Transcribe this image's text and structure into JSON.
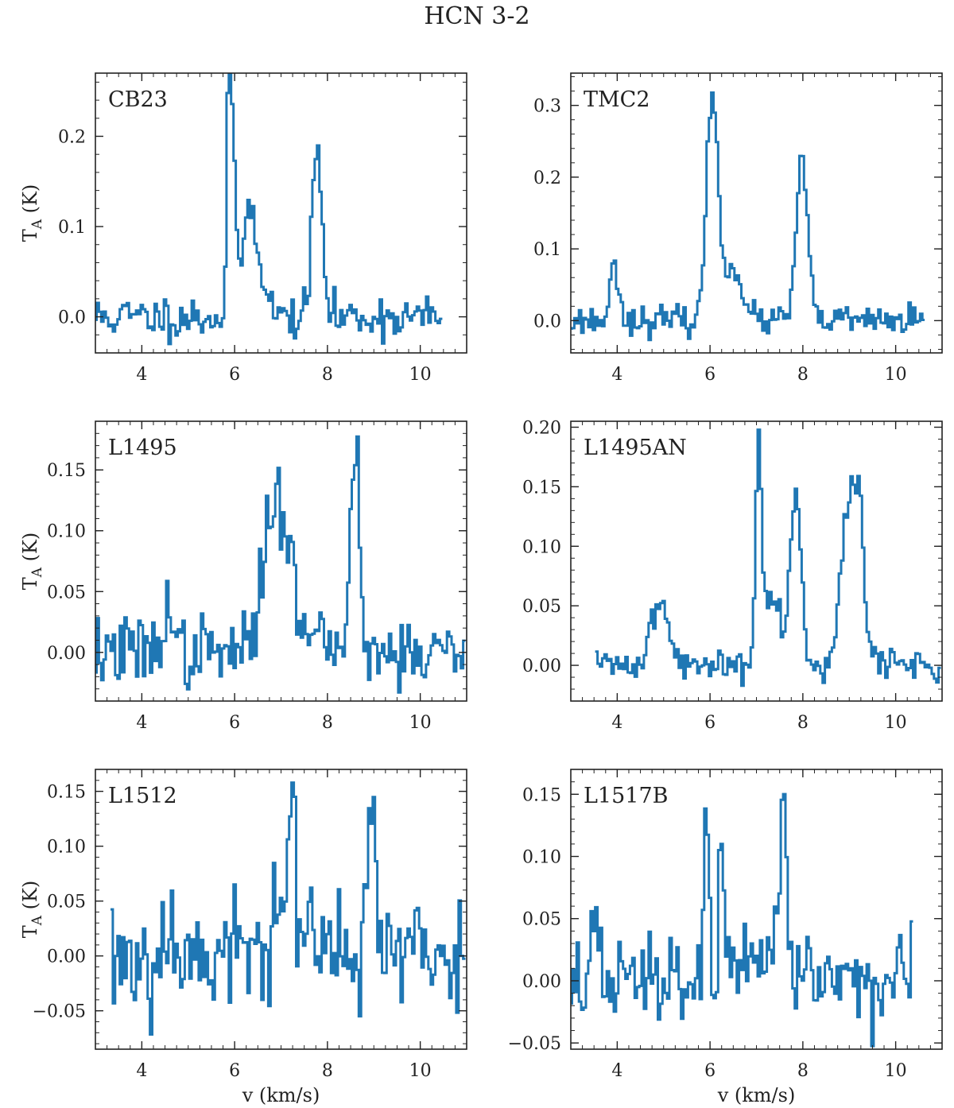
{
  "figure": {
    "title": "HCN 3-2",
    "ylabel_main": "T",
    "ylabel_sub": "A",
    "ylabel_unit": " (K)",
    "xlabel": "v (km/s)",
    "line_color": "#1f77b4"
  },
  "chart_data": [
    {
      "type": "line",
      "name": "CB23",
      "xlim": [
        3,
        11
      ],
      "ylim": [
        -0.04,
        0.27
      ],
      "xticks": [
        4,
        6,
        8,
        10
      ],
      "xtick_labels": [
        "4",
        "6",
        "8",
        "10"
      ],
      "yticks": [
        0.0,
        0.1,
        0.2
      ],
      "ytick_labels": [
        "0.0",
        "0.1",
        "0.2"
      ],
      "show_ylabel": true,
      "show_xlabel": false,
      "x_range": [
        3.0,
        10.45
      ],
      "peaks": [
        {
          "v": 5.88,
          "t": 0.27,
          "w": 0.04
        },
        {
          "v": 5.95,
          "t": 0.18,
          "w": 0.06
        },
        {
          "v": 6.3,
          "t": 0.11,
          "w": 0.15
        },
        {
          "v": 6.55,
          "t": 0.04,
          "w": 0.15
        },
        {
          "v": 7.8,
          "t": 0.155,
          "w": 0.1
        },
        {
          "v": 7.7,
          "t": 0.05,
          "w": 0.08
        }
      ],
      "noise": 0.012,
      "seed": 11
    },
    {
      "type": "line",
      "name": "TMC2",
      "xlim": [
        3,
        11
      ],
      "ylim": [
        -0.045,
        0.345
      ],
      "xticks": [
        4,
        6,
        8,
        10
      ],
      "xtick_labels": [
        "4",
        "6",
        "8",
        "10"
      ],
      "yticks": [
        0.0,
        0.1,
        0.2,
        0.3
      ],
      "ytick_labels": [
        "0.0",
        "0.1",
        "0.2",
        "0.3"
      ],
      "show_ylabel": false,
      "show_xlabel": false,
      "x_range": [
        3.0,
        10.6
      ],
      "peaks": [
        {
          "v": 3.95,
          "t": 0.075,
          "w": 0.1
        },
        {
          "v": 6.05,
          "t": 0.32,
          "w": 0.12
        },
        {
          "v": 6.5,
          "t": 0.08,
          "w": 0.18
        },
        {
          "v": 7.98,
          "t": 0.225,
          "w": 0.12
        }
      ],
      "noise": 0.01,
      "seed": 23
    },
    {
      "type": "line",
      "name": "L1495",
      "xlim": [
        3,
        11
      ],
      "ylim": [
        -0.04,
        0.19
      ],
      "xticks": [
        4,
        6,
        8,
        10
      ],
      "xtick_labels": [
        "4",
        "6",
        "8",
        "10"
      ],
      "yticks": [
        0.0,
        0.05,
        0.1,
        0.15
      ],
      "ytick_labels": [
        "0.00",
        "0.05",
        "0.10",
        "0.15"
      ],
      "show_ylabel": true,
      "show_xlabel": false,
      "x_range": [
        3.0,
        10.95
      ],
      "peaks": [
        {
          "v": 4.55,
          "t": 0.05,
          "w": 0.08
        },
        {
          "v": 6.9,
          "t": 0.13,
          "w": 0.25
        },
        {
          "v": 7.25,
          "t": 0.06,
          "w": 0.06
        },
        {
          "v": 7.85,
          "t": 0.04,
          "w": 0.08
        },
        {
          "v": 8.6,
          "t": 0.18,
          "w": 0.1
        }
      ],
      "noise": 0.015,
      "seed": 37
    },
    {
      "type": "line",
      "name": "L1495AN",
      "xlim": [
        3,
        11
      ],
      "ylim": [
        -0.03,
        0.205
      ],
      "xticks": [
        4,
        6,
        8,
        10
      ],
      "xtick_labels": [
        "4",
        "6",
        "8",
        "10"
      ],
      "yticks": [
        0.0,
        0.05,
        0.1,
        0.15,
        0.2
      ],
      "ytick_labels": [
        "0.00",
        "0.05",
        "0.10",
        "0.15",
        "0.20"
      ],
      "show_ylabel": false,
      "show_xlabel": false,
      "x_range": [
        3.55,
        10.95
      ],
      "peaks": [
        {
          "v": 4.9,
          "t": 0.055,
          "w": 0.18
        },
        {
          "v": 7.05,
          "t": 0.17,
          "w": 0.06
        },
        {
          "v": 7.3,
          "t": 0.06,
          "w": 0.2
        },
        {
          "v": 7.85,
          "t": 0.15,
          "w": 0.12
        },
        {
          "v": 9.05,
          "t": 0.15,
          "w": 0.2
        },
        {
          "v": 9.25,
          "t": 0.06,
          "w": 0.06
        }
      ],
      "noise": 0.007,
      "seed": 41
    },
    {
      "type": "line",
      "name": "L1512",
      "xlim": [
        3,
        11
      ],
      "ylim": [
        -0.085,
        0.17
      ],
      "xticks": [
        4,
        6,
        8,
        10
      ],
      "xtick_labels": [
        "4",
        "6",
        "8",
        "10"
      ],
      "yticks": [
        -0.05,
        0.0,
        0.05,
        0.1,
        0.15
      ],
      "ytick_labels": [
        "−0.05",
        "0.00",
        "0.05",
        "0.10",
        "0.15"
      ],
      "show_ylabel": true,
      "show_xlabel": true,
      "x_range": [
        3.35,
        10.95
      ],
      "peaks": [
        {
          "v": 4.7,
          "t": 0.045,
          "w": 0.08
        },
        {
          "v": 7.05,
          "t": 0.07,
          "w": 0.25
        },
        {
          "v": 7.25,
          "t": 0.09,
          "w": 0.06
        },
        {
          "v": 8.95,
          "t": 0.13,
          "w": 0.08
        },
        {
          "v": 8.85,
          "t": 0.04,
          "w": 0.1
        }
      ],
      "noise": 0.03,
      "seed": 53
    },
    {
      "type": "line",
      "name": "L1517B",
      "xlim": [
        3,
        11
      ],
      "ylim": [
        -0.055,
        0.17
      ],
      "xticks": [
        4,
        6,
        8,
        10
      ],
      "xtick_labels": [
        "4",
        "6",
        "8",
        "10"
      ],
      "yticks": [
        -0.05,
        0.0,
        0.05,
        0.1,
        0.15
      ],
      "ytick_labels": [
        "−0.05",
        "0.00",
        "0.05",
        "0.10",
        "0.15"
      ],
      "show_ylabel": false,
      "show_xlabel": true,
      "x_range": [
        3.0,
        10.35
      ],
      "peaks": [
        {
          "v": 3.5,
          "t": 0.04,
          "w": 0.08
        },
        {
          "v": 5.92,
          "t": 0.15,
          "w": 0.05
        },
        {
          "v": 6.25,
          "t": 0.11,
          "w": 0.06
        },
        {
          "v": 7.6,
          "t": 0.15,
          "w": 0.07
        },
        {
          "v": 7.45,
          "t": 0.04,
          "w": 0.1
        },
        {
          "v": 8.1,
          "t": 0.04,
          "w": 0.05
        }
      ],
      "noise": 0.018,
      "seed": 67
    }
  ]
}
